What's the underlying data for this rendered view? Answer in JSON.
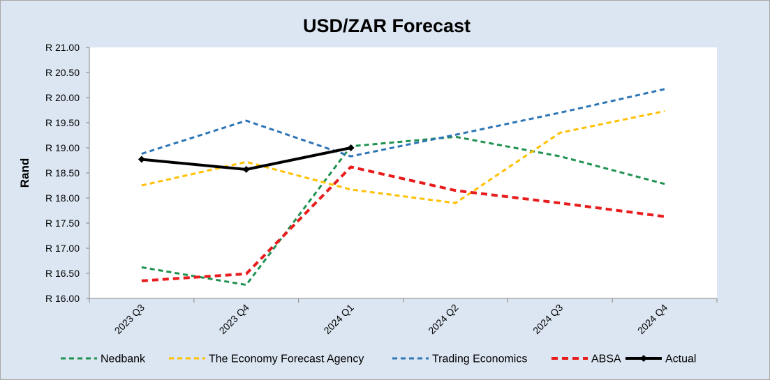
{
  "chart_data": {
    "type": "line",
    "title": "USD/ZAR Forecast",
    "xlabel": "",
    "ylabel": "Rand",
    "categories": [
      "2023 Q3",
      "2023 Q4",
      "2024 Q1",
      "2024 Q2",
      "2024 Q3",
      "2024 Q4"
    ],
    "ylim": [
      16.0,
      21.0
    ],
    "yticks": [
      16.0,
      16.5,
      17.0,
      17.5,
      18.0,
      18.5,
      19.0,
      19.5,
      20.0,
      20.5,
      21.0
    ],
    "ytick_labels": [
      "R 16.00",
      "R 16.50",
      "R 17.00",
      "R 17.50",
      "R 18.00",
      "R 18.50",
      "R 19.00",
      "R 19.50",
      "R 20.00",
      "R 20.50",
      "R 21.00"
    ],
    "grid": false,
    "legend_position": "bottom",
    "series": [
      {
        "name": "Nedbank",
        "color": "#1e9150",
        "style": "dashed",
        "values": [
          16.62,
          16.27,
          19.03,
          19.22,
          18.83,
          18.28
        ]
      },
      {
        "name": "The Economy Forecast Agency",
        "color": "#ffc000",
        "style": "dashed",
        "values": [
          18.25,
          18.72,
          18.17,
          17.9,
          19.3,
          19.73
        ]
      },
      {
        "name": "Trading Economics",
        "color": "#2e75b6",
        "style": "dashed",
        "values": [
          18.88,
          19.54,
          18.83,
          19.26,
          19.7,
          20.17
        ]
      },
      {
        "name": "ABSA",
        "color": "#e81c1c",
        "style": "dashed-thick",
        "values": [
          16.35,
          16.49,
          18.62,
          18.15,
          17.9,
          17.63
        ]
      },
      {
        "name": "Actual",
        "color": "#000000",
        "style": "solid-markers",
        "values": [
          18.77,
          18.57,
          19.0,
          null,
          null,
          null
        ]
      }
    ]
  }
}
